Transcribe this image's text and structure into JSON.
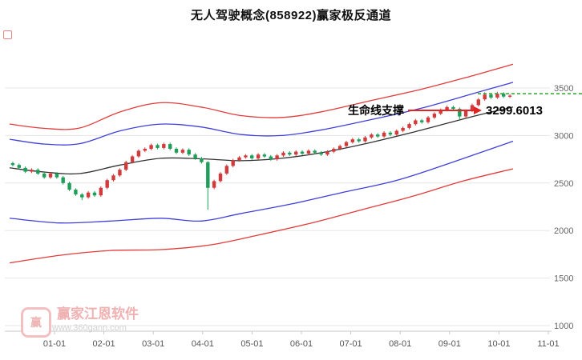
{
  "watermark": {
    "brand": "赢家江恩软件",
    "url": "www.360gann.com",
    "logo_text": "赢"
  },
  "chart_data": {
    "type": "candlestick",
    "title": "无人驾驶概念(858922)赢家极反通道",
    "x_labels": [
      "01-01",
      "02-01",
      "03-01",
      "04-01",
      "05-01",
      "06-01",
      "07-01",
      "08-01",
      "09-01",
      "10-01",
      "11-01"
    ],
    "y_ticks": [
      1000,
      1500,
      2000,
      2500,
      3000,
      3500
    ],
    "y_axis_range": [
      1000,
      3500
    ],
    "grid": "horizontal",
    "candle_colors": {
      "up": "#d23b3b",
      "down": "#1f9e5a"
    },
    "support_level": {
      "label": "生命线支撑",
      "value": 3299.6013,
      "value_text": "3299.6013",
      "arrow_color": "#e42424"
    },
    "dotted_line": {
      "value": 3440,
      "color": "#2ca02c",
      "style": "dashed"
    },
    "bands": [
      {
        "name": "upper-red",
        "color": "#e23c3c",
        "points": [
          [
            0,
            3120
          ],
          [
            0.07,
            3075
          ],
          [
            0.14,
            3080
          ],
          [
            0.22,
            3250
          ],
          [
            0.3,
            3345
          ],
          [
            0.38,
            3300
          ],
          [
            0.46,
            3210
          ],
          [
            0.54,
            3190
          ],
          [
            0.62,
            3250
          ],
          [
            0.72,
            3370
          ],
          [
            0.82,
            3490
          ],
          [
            0.92,
            3630
          ],
          [
            1,
            3750
          ]
        ]
      },
      {
        "name": "upper-blue",
        "color": "#4040d9",
        "points": [
          [
            0,
            2960
          ],
          [
            0.07,
            2910
          ],
          [
            0.14,
            2915
          ],
          [
            0.22,
            3050
          ],
          [
            0.3,
            3120
          ],
          [
            0.38,
            3090
          ],
          [
            0.46,
            3010
          ],
          [
            0.54,
            3000
          ],
          [
            0.62,
            3060
          ],
          [
            0.72,
            3170
          ],
          [
            0.82,
            3290
          ],
          [
            0.92,
            3440
          ],
          [
            1,
            3560
          ]
        ]
      },
      {
        "name": "lifeline-mid-black",
        "color": "#333333",
        "points": [
          [
            0,
            2660
          ],
          [
            0.07,
            2615
          ],
          [
            0.14,
            2600
          ],
          [
            0.22,
            2690
          ],
          [
            0.3,
            2760
          ],
          [
            0.38,
            2755
          ],
          [
            0.46,
            2735
          ],
          [
            0.54,
            2760
          ],
          [
            0.62,
            2820
          ],
          [
            0.72,
            2930
          ],
          [
            0.82,
            3060
          ],
          [
            0.92,
            3200
          ],
          [
            1,
            3299.6
          ]
        ]
      },
      {
        "name": "lower-blue",
        "color": "#4040d9",
        "points": [
          [
            0,
            2130
          ],
          [
            0.1,
            2080
          ],
          [
            0.2,
            2100
          ],
          [
            0.3,
            2130
          ],
          [
            0.38,
            2100
          ],
          [
            0.46,
            2180
          ],
          [
            0.56,
            2280
          ],
          [
            0.66,
            2400
          ],
          [
            0.77,
            2530
          ],
          [
            0.88,
            2720
          ],
          [
            1,
            2940
          ]
        ]
      },
      {
        "name": "lower-red",
        "color": "#e23c3c",
        "points": [
          [
            0,
            1660
          ],
          [
            0.1,
            1740
          ],
          [
            0.2,
            1790
          ],
          [
            0.3,
            1800
          ],
          [
            0.4,
            1850
          ],
          [
            0.5,
            1960
          ],
          [
            0.6,
            2080
          ],
          [
            0.7,
            2220
          ],
          [
            0.8,
            2360
          ],
          [
            0.9,
            2520
          ],
          [
            1,
            2650
          ]
        ]
      }
    ],
    "candles": [
      [
        2710,
        2725,
        2675,
        2690
      ],
      [
        2690,
        2705,
        2645,
        2660
      ],
      [
        2660,
        2675,
        2605,
        2620
      ],
      [
        2620,
        2655,
        2605,
        2640
      ],
      [
        2640,
        2655,
        2585,
        2600
      ],
      [
        2600,
        2615,
        2545,
        2560
      ],
      [
        2560,
        2615,
        2545,
        2600
      ],
      [
        2600,
        2615,
        2545,
        2560
      ],
      [
        2560,
        2575,
        2485,
        2500
      ],
      [
        2500,
        2515,
        2415,
        2430
      ],
      [
        2430,
        2445,
        2365,
        2380
      ],
      [
        2380,
        2395,
        2320,
        2350
      ],
      [
        2350,
        2415,
        2335,
        2400
      ],
      [
        2400,
        2415,
        2355,
        2370
      ],
      [
        2370,
        2465,
        2355,
        2450
      ],
      [
        2450,
        2545,
        2435,
        2530
      ],
      [
        2530,
        2595,
        2515,
        2580
      ],
      [
        2580,
        2655,
        2565,
        2640
      ],
      [
        2640,
        2735,
        2625,
        2720
      ],
      [
        2720,
        2795,
        2705,
        2780
      ],
      [
        2780,
        2855,
        2765,
        2840
      ],
      [
        2840,
        2875,
        2825,
        2860
      ],
      [
        2860,
        2915,
        2845,
        2900
      ],
      [
        2900,
        2915,
        2855,
        2870
      ],
      [
        2870,
        2925,
        2855,
        2910
      ],
      [
        2910,
        2925,
        2845,
        2860
      ],
      [
        2860,
        2875,
        2805,
        2820
      ],
      [
        2820,
        2865,
        2805,
        2850
      ],
      [
        2850,
        2865,
        2785,
        2800
      ],
      [
        2800,
        2815,
        2745,
        2760
      ],
      [
        2760,
        2775,
        2705,
        2720
      ],
      [
        2720,
        2730,
        2220,
        2450
      ],
      [
        2450,
        2535,
        2435,
        2520
      ],
      [
        2520,
        2615,
        2505,
        2600
      ],
      [
        2600,
        2695,
        2585,
        2680
      ],
      [
        2680,
        2755,
        2665,
        2740
      ],
      [
        2740,
        2785,
        2725,
        2770
      ],
      [
        2770,
        2805,
        2755,
        2790
      ],
      [
        2790,
        2805,
        2745,
        2760
      ],
      [
        2760,
        2815,
        2745,
        2800
      ],
      [
        2800,
        2815,
        2765,
        2780
      ],
      [
        2780,
        2795,
        2735,
        2750
      ],
      [
        2750,
        2805,
        2735,
        2790
      ],
      [
        2790,
        2835,
        2775,
        2820
      ],
      [
        2820,
        2835,
        2785,
        2800
      ],
      [
        2800,
        2845,
        2785,
        2830
      ],
      [
        2830,
        2845,
        2795,
        2810
      ],
      [
        2810,
        2855,
        2795,
        2840
      ],
      [
        2840,
        2855,
        2805,
        2820
      ],
      [
        2820,
        2835,
        2785,
        2800
      ],
      [
        2800,
        2845,
        2785,
        2830
      ],
      [
        2830,
        2875,
        2815,
        2860
      ],
      [
        2860,
        2905,
        2845,
        2890
      ],
      [
        2890,
        2945,
        2875,
        2930
      ],
      [
        2930,
        2975,
        2915,
        2960
      ],
      [
        2960,
        2975,
        2925,
        2940
      ],
      [
        2940,
        2995,
        2925,
        2980
      ],
      [
        2980,
        3025,
        2965,
        3010
      ],
      [
        3010,
        3025,
        2975,
        2990
      ],
      [
        2990,
        3045,
        2975,
        3030
      ],
      [
        3030,
        3045,
        2995,
        3010
      ],
      [
        3010,
        3065,
        2995,
        3050
      ],
      [
        3050,
        3095,
        3035,
        3080
      ],
      [
        3080,
        3135,
        3065,
        3120
      ],
      [
        3120,
        3175,
        3105,
        3160
      ],
      [
        3160,
        3175,
        3125,
        3140
      ],
      [
        3140,
        3205,
        3125,
        3190
      ],
      [
        3190,
        3245,
        3175,
        3230
      ],
      [
        3230,
        3285,
        3215,
        3270
      ],
      [
        3270,
        3315,
        3255,
        3300
      ],
      [
        3300,
        3315,
        3265,
        3280
      ],
      [
        3280,
        3295,
        3170,
        3200
      ],
      [
        3200,
        3275,
        3185,
        3260
      ],
      [
        3260,
        3335,
        3245,
        3320
      ],
      [
        3320,
        3395,
        3305,
        3380
      ],
      [
        3380,
        3455,
        3365,
        3430
      ],
      [
        3430,
        3445,
        3385,
        3400
      ],
      [
        3400,
        3460,
        3385,
        3440
      ],
      [
        3440,
        3455,
        3395,
        3410
      ],
      [
        3410,
        3435,
        3395,
        3420
      ]
    ]
  }
}
